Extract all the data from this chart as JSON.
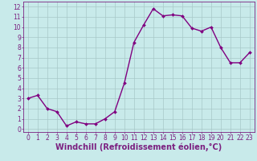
{
  "x": [
    0,
    1,
    2,
    3,
    4,
    5,
    6,
    7,
    8,
    9,
    10,
    11,
    12,
    13,
    14,
    15,
    16,
    17,
    18,
    19,
    20,
    21,
    22,
    23
  ],
  "y": [
    3.0,
    3.3,
    2.0,
    1.7,
    0.3,
    0.7,
    0.5,
    0.5,
    1.0,
    1.7,
    4.5,
    8.5,
    10.2,
    11.8,
    11.1,
    11.2,
    11.1,
    9.9,
    9.6,
    10.0,
    8.0,
    6.5,
    6.5,
    7.5
  ],
  "line_color": "#800080",
  "marker": "D",
  "marker_size": 2,
  "bg_color": "#c8eaea",
  "grid_color": "#a8c8c8",
  "xlabel": "Windchill (Refroidissement éolien,°C)",
  "xlabel_fontsize": 7,
  "yticks": [
    0,
    1,
    2,
    3,
    4,
    5,
    6,
    7,
    8,
    9,
    10,
    11,
    12
  ],
  "xticks": [
    0,
    1,
    2,
    3,
    4,
    5,
    6,
    7,
    8,
    9,
    10,
    11,
    12,
    13,
    14,
    15,
    16,
    17,
    18,
    19,
    20,
    21,
    22,
    23
  ],
  "ylim": [
    -0.3,
    12.5
  ],
  "xlim": [
    -0.5,
    23.5
  ],
  "tick_fontsize": 5.5,
  "line_width": 1.0,
  "border_color": "#7b2080",
  "spine_color": "#7b2080"
}
